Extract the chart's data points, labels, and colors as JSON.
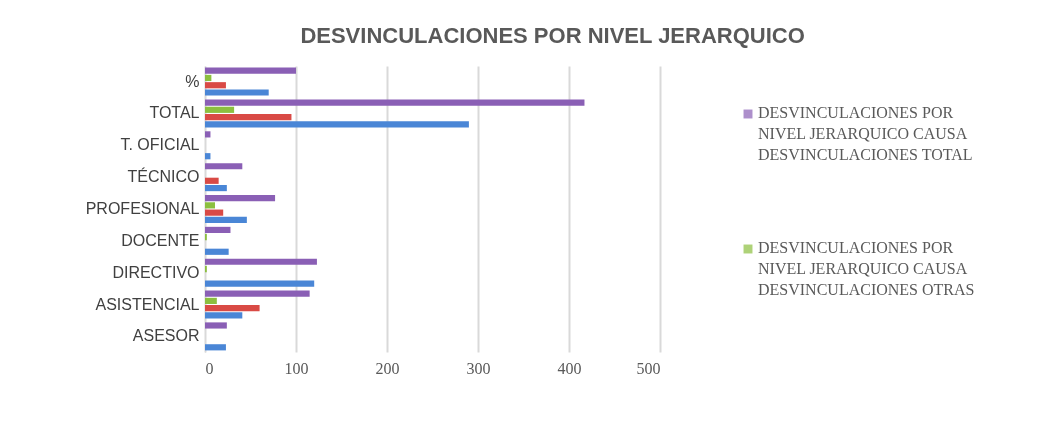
{
  "chart_data": {
    "type": "bar",
    "orientation": "horizontal",
    "title": "DESVINCULACIONES POR NIVEL JERARQUICO",
    "categories": [
      "%",
      "TOTAL",
      "T. OFICIAL",
      "TÉCNICO",
      "PROFESIONAL",
      "DOCENTE",
      "DIRECTIVO",
      "ASISTENCIAL",
      "ASESOR"
    ],
    "series": [
      {
        "name": "DESVINCULACIONES POR NIVEL JERARQUICO CAUSA DESVINCULACIONES  TOTAL",
        "color": "#8a5fb5",
        "values": [
          100,
          417,
          6,
          41,
          77,
          28,
          123,
          115,
          24
        ]
      },
      {
        "name": "DESVINCULACIONES POR NIVEL JERARQUICO CAUSA DESVINCULACIONES  OTRAS",
        "color": "#8cbf3f",
        "values": [
          7,
          32,
          0,
          0,
          11,
          2,
          2,
          13,
          0
        ]
      },
      {
        "color": "#d94a45",
        "values": [
          23,
          95,
          0,
          15,
          20,
          0,
          0,
          60,
          0
        ]
      },
      {
        "color": "#4a86d6",
        "values": [
          70,
          290,
          6,
          24,
          46,
          26,
          120,
          41,
          23
        ]
      }
    ],
    "xlim": [
      0,
      500
    ],
    "xticks": [
      0,
      100,
      200,
      300,
      400,
      500
    ],
    "grid": "x",
    "legend": "right"
  }
}
